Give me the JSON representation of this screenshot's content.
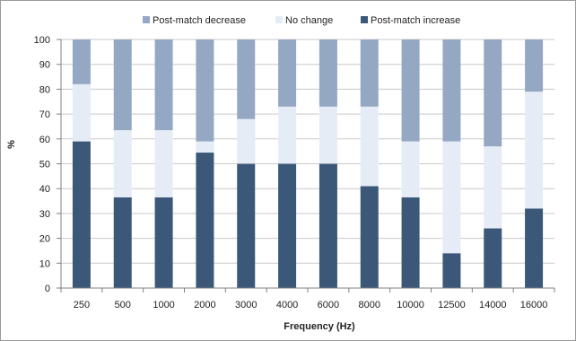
{
  "chart_data": {
    "type": "bar",
    "stacked": true,
    "xlabel": "Frequency (Hz)",
    "ylabel": "%",
    "ylim": [
      0,
      100
    ],
    "yticks": [
      0,
      10,
      20,
      30,
      40,
      50,
      60,
      70,
      80,
      90,
      100
    ],
    "grid": true,
    "legend_position": "top",
    "categories": [
      "250",
      "500",
      "1000",
      "2000",
      "3000",
      "4000",
      "6000",
      "8000",
      "10000",
      "12500",
      "14000",
      "16000"
    ],
    "series": [
      {
        "name": "Post-match increase",
        "color": "#3b5878",
        "values": [
          59,
          36.5,
          36.5,
          54.5,
          50,
          50,
          50,
          41,
          36.5,
          14,
          24,
          32
        ]
      },
      {
        "name": "No change",
        "color": "#e6ecf5",
        "values": [
          23,
          27,
          27,
          4.5,
          18,
          23,
          23,
          32,
          22.5,
          45,
          33,
          47
        ]
      },
      {
        "name": "Post-match decrease",
        "color": "#94a8c4",
        "values": [
          18,
          36.5,
          36.5,
          41,
          32,
          27,
          27,
          27,
          41,
          41,
          43,
          21
        ]
      }
    ],
    "legend_order": [
      "Post-match decrease",
      "No change",
      "Post-match increase"
    ]
  }
}
